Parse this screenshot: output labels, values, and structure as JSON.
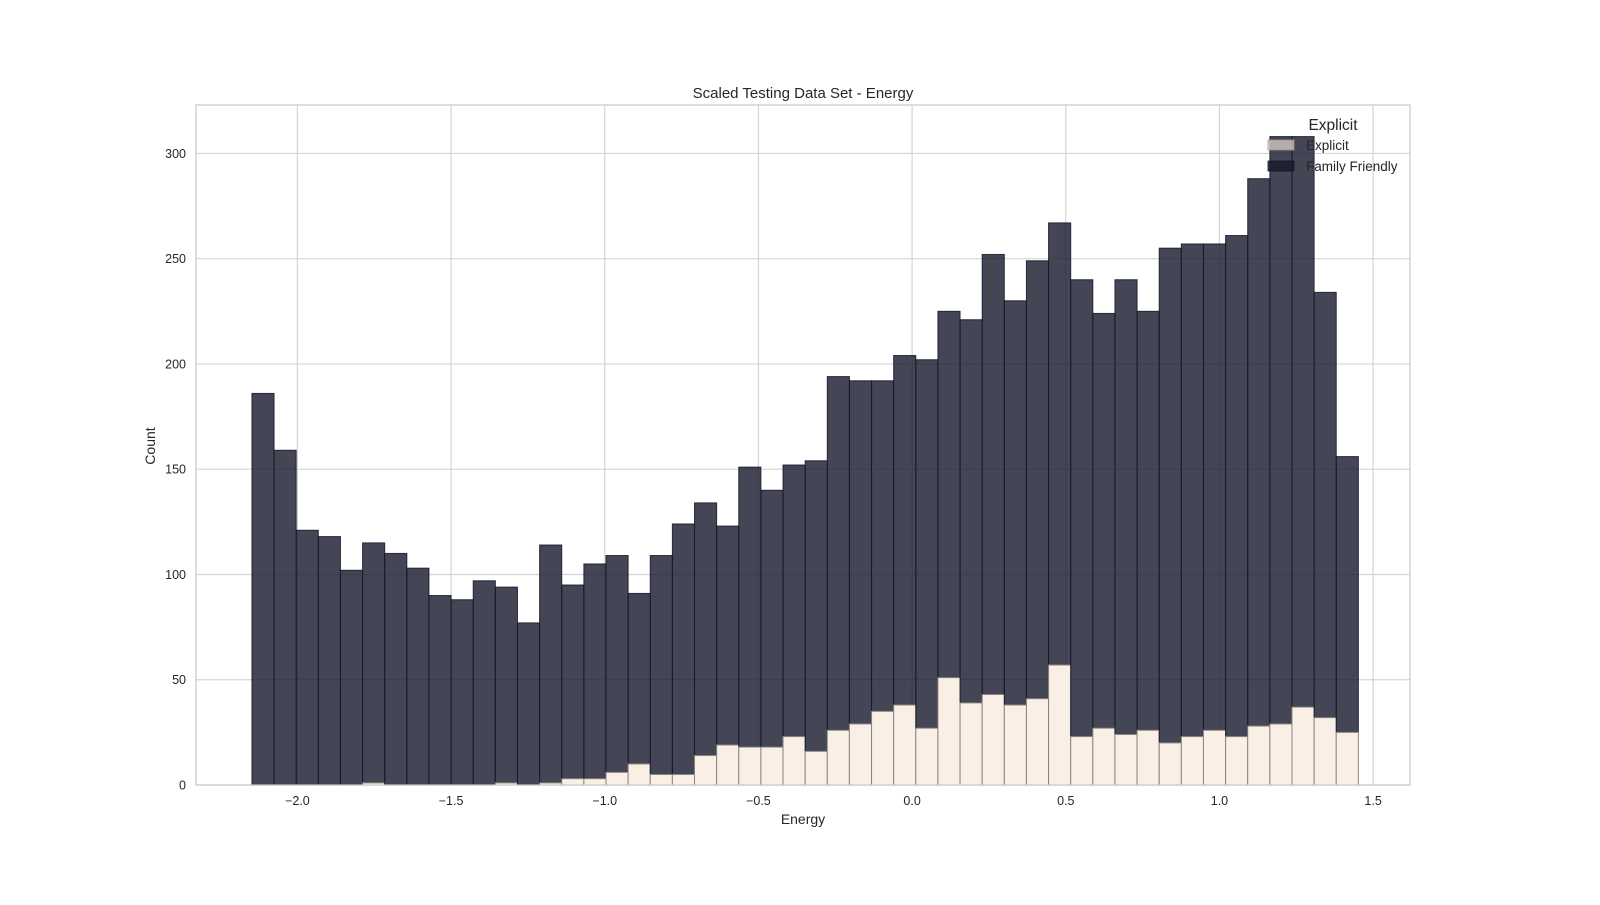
{
  "chart_data": {
    "type": "bar",
    "title": "Scaled Testing Data Set - Energy",
    "xlabel": "Energy",
    "ylabel": "Count",
    "xlim": [
      -2.33,
      1.62
    ],
    "ylim": [
      0,
      323
    ],
    "x_ticks": [
      "−2.0",
      "−1.5",
      "−1.0",
      "−0.5",
      "0.0",
      "0.5",
      "1.0",
      "1.5"
    ],
    "x_tick_values": [
      -2.0,
      -1.5,
      -1.0,
      -0.5,
      0.0,
      0.5,
      1.0,
      1.5
    ],
    "y_ticks": [
      "0",
      "50",
      "100",
      "150",
      "200",
      "250",
      "300"
    ],
    "y_tick_values": [
      0,
      50,
      100,
      150,
      200,
      250,
      300
    ],
    "grid": true,
    "bin_edges": [
      -2.148,
      -2.076,
      -2.004,
      -1.932,
      -1.86,
      -1.788,
      -1.716,
      -1.644,
      -1.572,
      -1.5,
      -1.428,
      -1.356,
      -1.284,
      -1.212,
      -1.14,
      -1.068,
      -0.996,
      -0.924,
      -0.852,
      -0.78,
      -0.708,
      -0.636,
      -0.564,
      -0.492,
      -0.42,
      -0.348,
      -0.276,
      -0.204,
      -0.132,
      -0.06,
      0.012,
      0.084,
      0.156,
      0.228,
      0.3,
      0.372,
      0.444,
      0.516,
      0.588,
      0.66,
      0.732,
      0.804,
      0.876,
      0.948,
      1.02,
      1.092,
      1.164,
      1.236,
      1.308,
      1.38,
      1.452
    ],
    "legend": {
      "title": "Explicit",
      "position": "top-right",
      "entries": [
        "Explicit",
        "Family Friendly"
      ]
    },
    "series": [
      {
        "name": "Explicit",
        "color": "#f9efe4",
        "values": [
          0,
          0,
          0,
          0,
          0,
          1,
          0,
          0,
          0,
          0,
          0,
          1,
          0,
          1,
          3,
          3,
          6,
          10,
          5,
          5,
          14,
          19,
          18,
          18,
          23,
          16,
          26,
          29,
          35,
          38,
          27,
          51,
          39,
          43,
          38,
          41,
          57,
          23,
          27,
          24,
          26,
          20,
          23,
          26,
          23,
          28,
          29,
          37,
          32,
          25
        ]
      },
      {
        "name": "Family Friendly",
        "color": "#15172b",
        "values": [
          186,
          159,
          121,
          118,
          102,
          114,
          110,
          103,
          90,
          88,
          97,
          93,
          77,
          113,
          92,
          102,
          103,
          81,
          104,
          119,
          120,
          104,
          133,
          122,
          129,
          138,
          168,
          163,
          157,
          166,
          175,
          174,
          182,
          209,
          192,
          208,
          210,
          217,
          197,
          216,
          199,
          235,
          234,
          231,
          238,
          260,
          279,
          271,
          202,
          131
        ]
      }
    ]
  }
}
